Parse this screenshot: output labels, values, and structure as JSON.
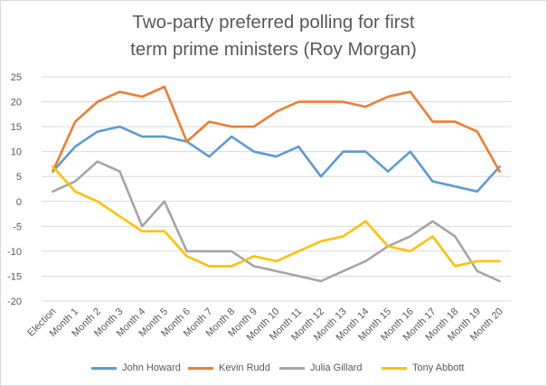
{
  "chart_data": {
    "type": "line",
    "title_line1": "Two-party preferred polling for first",
    "title_line2": "term prime ministers (Roy Morgan)",
    "categories": [
      "Election",
      "Month 1",
      "Month 2",
      "Month 3",
      "Month 4",
      "Month 5",
      "Month 6",
      "Month 7",
      "Month 8",
      "Month 9",
      "Month 10",
      "Month 11",
      "Month 12",
      "Month 13",
      "Month 14",
      "Month 15",
      "Month 16",
      "Month 17",
      "Month 18",
      "Month 19",
      "Month 20"
    ],
    "ylim": [
      -20,
      25
    ],
    "yticks": [
      25,
      20,
      15,
      10,
      5,
      0,
      -5,
      -10,
      -15,
      -20
    ],
    "grid": true,
    "legend_position": "bottom",
    "series": [
      {
        "name": "John Howard",
        "color": "#5B9BD5",
        "values": [
          6,
          11,
          14,
          15,
          13,
          13,
          12,
          9,
          13,
          10,
          9,
          11,
          5,
          10,
          10,
          6,
          10,
          4,
          3,
          2,
          7
        ]
      },
      {
        "name": "Kevin Rudd",
        "color": "#ED7D31",
        "values": [
          6,
          16,
          20,
          22,
          21,
          23,
          12,
          16,
          15,
          15,
          18,
          20,
          20,
          20,
          19,
          21,
          22,
          16,
          16,
          14,
          6
        ]
      },
      {
        "name": "Julia Gillard",
        "color": "#A5A5A5",
        "values": [
          2,
          4,
          8,
          6,
          -5,
          0,
          -10,
          -10,
          -10,
          -13,
          -14,
          -15,
          -16,
          -14,
          -12,
          -9,
          -7,
          -4,
          -7,
          -14,
          -16
        ]
      },
      {
        "name": "Tony Abbott",
        "color": "#FFC000",
        "values": [
          7,
          2,
          0,
          -3,
          -6,
          -6,
          -11,
          -13,
          -13,
          -11,
          -12,
          -10,
          -8,
          -7,
          -4,
          -9,
          -10,
          -7,
          -13,
          -12,
          -12
        ]
      }
    ]
  }
}
